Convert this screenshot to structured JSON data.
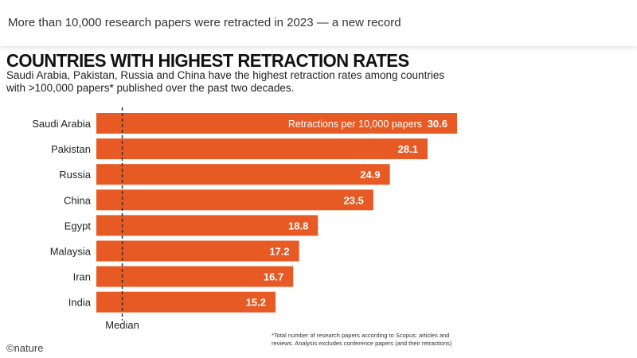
{
  "header": {
    "title": "More than 10,000 research papers were retracted in 2023 — a new record"
  },
  "figure": {
    "footnote": "*Total number of research papers according to Scopus: articles and reviews. Analysis excludes conference papers (and their retractions)",
    "logo": "©nature"
  },
  "colors": {
    "bar": "#e85a24",
    "bar_label": "#ffffff",
    "median_line": "#333333",
    "text": "#222222"
  },
  "chart_data": {
    "type": "bar",
    "orientation": "horizontal",
    "title": "COUNTRIES WITH HIGHEST RETRACTION RATES",
    "subtitle": "Saudi Arabia, Pakistan, Russia and China have the highest retraction rates among countries with >100,000 papers* published over the past two decades.",
    "categories": [
      "Saudi Arabia",
      "Pakistan",
      "Russia",
      "China",
      "Egypt",
      "Malaysia",
      "Iran",
      "India"
    ],
    "values": [
      30.6,
      28.1,
      24.9,
      23.5,
      18.8,
      17.2,
      16.7,
      15.2
    ],
    "value_label_prefix": "Retractions per 10,000 papers",
    "median_label": "Median",
    "median_value": 2.2,
    "xlim": [
      0,
      30.6
    ],
    "grid": false,
    "legend": "none"
  }
}
